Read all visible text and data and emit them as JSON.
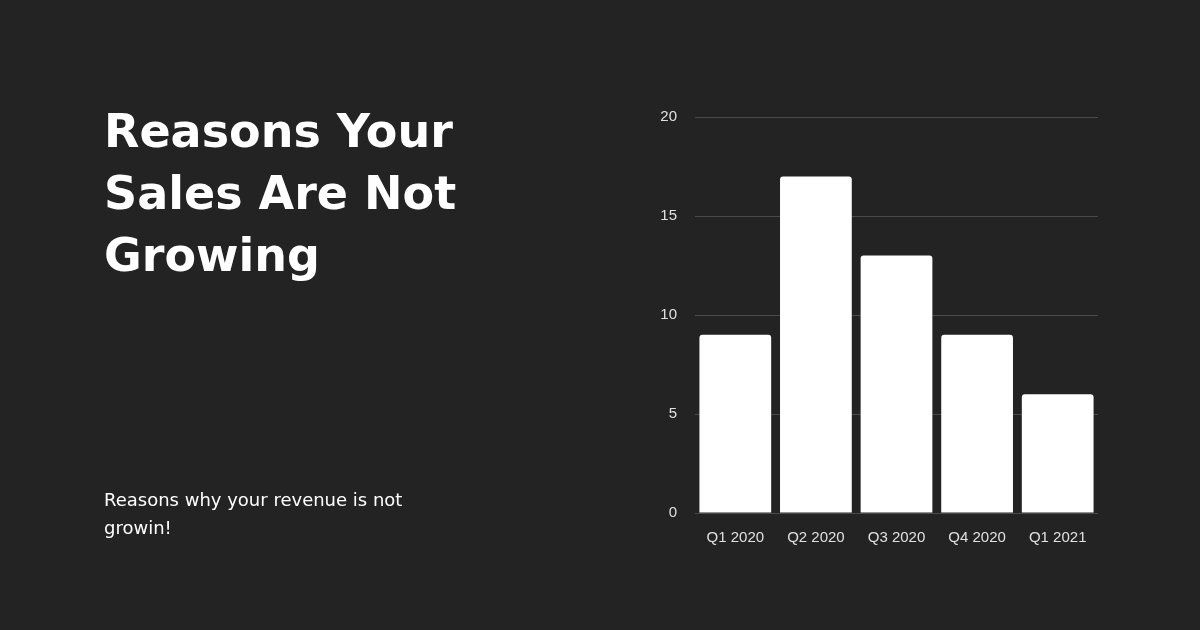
{
  "chart_data": {
    "type": "bar",
    "title": "Reasons Your Sales Are Not Growing",
    "subtitle": "Reasons why your revenue is not growin!",
    "categories": [
      "Q1 2020",
      "Q2 2020",
      "Q3 2020",
      "Q4 2020",
      "Q1 2021"
    ],
    "values": [
      9,
      17,
      13,
      9,
      6
    ],
    "color": "#ffffff",
    "ylim": [
      0,
      20
    ],
    "yticks": [
      0,
      5,
      10,
      15,
      20
    ],
    "grid": "y",
    "legend": false
  }
}
